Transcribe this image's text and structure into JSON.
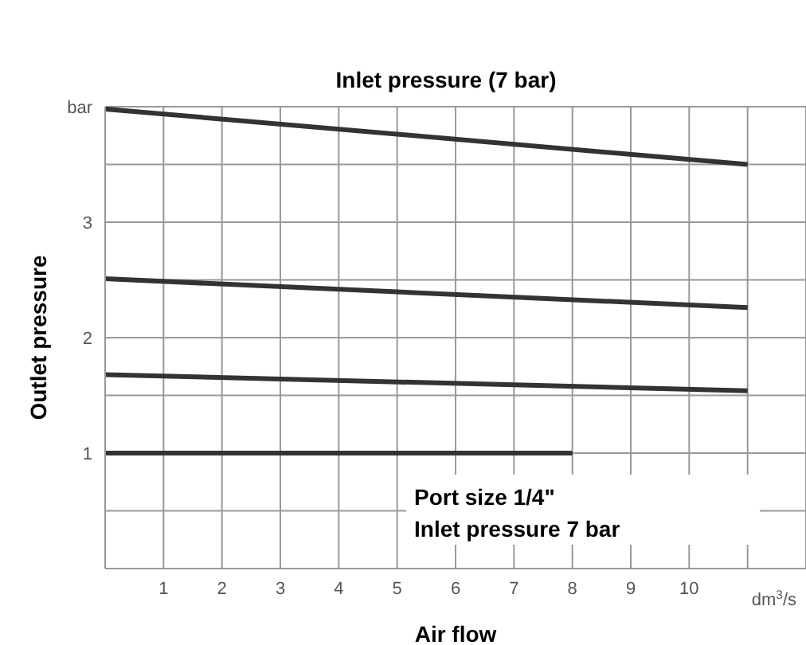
{
  "chart_data": {
    "type": "line",
    "subtitle": "Inlet pressure (7 bar)",
    "xlabel": "Air flow",
    "ylabel": "Outlet pressure",
    "xlim": [
      0,
      12
    ],
    "xticks": [
      1,
      2,
      3,
      4,
      5,
      6,
      7,
      8,
      9,
      10,
      {
        "value": 11,
        "label": null
      },
      {
        "value": 12,
        "label": null
      }
    ],
    "ylim": [
      0,
      4
    ],
    "yticks": [
      {
        "value": 0,
        "label": null
      },
      {
        "value": 0.5,
        "label": null
      },
      1,
      {
        "value": 1.5,
        "label": null
      },
      2,
      {
        "value": 2.5,
        "label": null
      },
      3,
      {
        "value": 3.5,
        "label": null
      },
      {
        "value": 4,
        "label": "bar"
      }
    ],
    "grid": true,
    "marker": "none",
    "line_style": "solid",
    "series": [
      {
        "color": "#333333",
        "x": [
          0,
          11
        ],
        "values": [
          3.98,
          3.5
        ]
      },
      {
        "color": "#333333",
        "x": [
          0,
          11
        ],
        "values": [
          2.51,
          2.26
        ]
      },
      {
        "color": "#333333",
        "x": [
          0,
          11
        ],
        "values": [
          1.68,
          1.54
        ]
      },
      {
        "color": "#333333",
        "x": [
          0,
          8
        ],
        "values": [
          1.0,
          1.0
        ]
      }
    ],
    "annotations": [
      "dm$^{3}$/s",
      "Port size 1/4\"",
      "Inlet pressure 7 bar"
    ]
  }
}
